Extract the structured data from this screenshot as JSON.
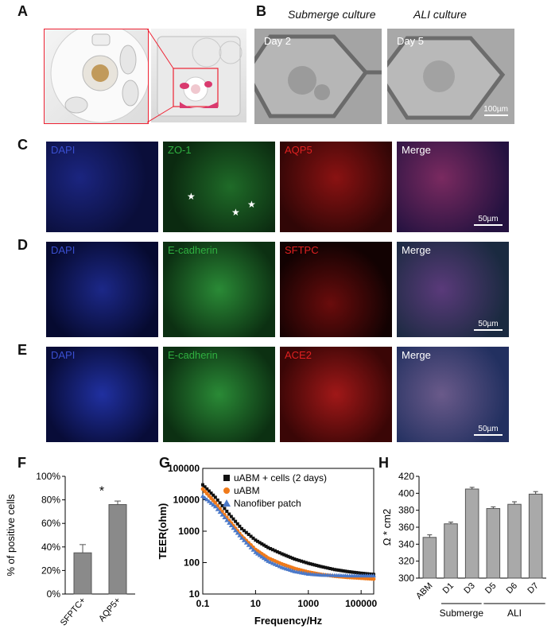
{
  "panels": {
    "a": {
      "letter": "A"
    },
    "b": {
      "letter": "B",
      "submerge_title": "Submerge culture",
      "ali_title": "ALI culture",
      "day_left": "Day 2",
      "day_right": "Day 5",
      "scale": "100µm"
    },
    "c": {
      "letter": "C",
      "tiles": [
        "DAPI",
        "ZO-1",
        "AQP5",
        "Merge"
      ],
      "scale": "50µm"
    },
    "d": {
      "letter": "D",
      "tiles": [
        "DAPI",
        "E-cadherin",
        "SFTPC",
        "Merge"
      ],
      "scale": "50µm"
    },
    "e": {
      "letter": "E",
      "tiles": [
        "DAPI",
        "E-cadherin",
        "ACE2",
        "Merge"
      ],
      "scale": "50µm"
    },
    "f": {
      "letter": "F",
      "significance": "*"
    },
    "g": {
      "letter": "G"
    },
    "h": {
      "letter": "H",
      "group_submerge": "Submerge",
      "group_ali": "ALI"
    }
  },
  "colors": {
    "dapi": "#3a4fd0",
    "green": "#2fb040",
    "red": "#e02020",
    "merge": "#ffffff",
    "bar": "#8a8a8a",
    "black_series": "#111111",
    "orange_series": "#f07a1a",
    "blue_series": "#4a78c8"
  },
  "chart_data": [
    {
      "id": "F",
      "type": "bar",
      "categories": [
        "SFPTC+",
        "AQP5+"
      ],
      "values": [
        35,
        76
      ],
      "errors": [
        7,
        3
      ],
      "ylabel": "% of positive cells",
      "ylim": [
        0,
        100
      ],
      "yticks": [
        "0%",
        "20%",
        "40%",
        "60%",
        "80%",
        "100%"
      ],
      "yticks_values": [
        0,
        20,
        40,
        60,
        80,
        100
      ],
      "annotation": "*"
    },
    {
      "id": "G",
      "type": "scatter",
      "xlabel": "Frequency/Hz",
      "ylabel": "TEER(ohm)",
      "xscale": "log",
      "yscale": "log",
      "xlim": [
        0.1,
        300000
      ],
      "ylim": [
        10,
        100000
      ],
      "xticks": [
        "0.1",
        "10",
        "1000",
        "100000"
      ],
      "xticks_values": [
        0.1,
        10,
        1000,
        100000
      ],
      "yticks": [
        "10",
        "100",
        "1000",
        "10000",
        "100000"
      ],
      "yticks_values": [
        10,
        100,
        1000,
        10000,
        100000
      ],
      "legend_position": "top-right",
      "series": [
        {
          "name": "uABM + cells (2 days)",
          "marker": "square",
          "color": "#111111",
          "x": [
            0.1,
            0.3,
            1,
            3,
            10,
            30,
            100,
            300,
            1000,
            3000,
            10000,
            30000,
            100000,
            300000
          ],
          "y": [
            30000,
            12000,
            3500,
            1200,
            520,
            300,
            190,
            130,
            95,
            75,
            60,
            52,
            46,
            42
          ]
        },
        {
          "name": "uABM",
          "marker": "circle",
          "color": "#f07a1a",
          "x": [
            0.1,
            0.3,
            1,
            3,
            10,
            30,
            100,
            300,
            1000,
            3000,
            10000,
            30000,
            100000,
            300000
          ],
          "y": [
            22000,
            8000,
            2200,
            700,
            260,
            140,
            90,
            65,
            50,
            42,
            37,
            34,
            32,
            30
          ]
        },
        {
          "name": "Nanofiber patch",
          "marker": "triangle",
          "color": "#4a78c8",
          "x": [
            0.1,
            0.3,
            1,
            3,
            10,
            30,
            100,
            300,
            1000,
            3000,
            10000,
            30000,
            100000,
            300000
          ],
          "y": [
            13000,
            6000,
            1800,
            600,
            210,
            110,
            70,
            52,
            43,
            40,
            39,
            38,
            38,
            38
          ]
        }
      ]
    },
    {
      "id": "H",
      "type": "bar",
      "categories": [
        "ABM",
        "D1",
        "D3",
        "D5",
        "D6",
        "D7"
      ],
      "values": [
        348,
        364,
        405,
        382,
        387,
        399
      ],
      "errors": [
        3,
        2,
        2,
        2,
        3,
        3
      ],
      "ylabel": "Ω * cm2",
      "ylim": [
        300,
        420
      ],
      "yticks": [
        "300",
        "320",
        "340",
        "360",
        "380",
        "400",
        "420"
      ],
      "yticks_values": [
        300,
        320,
        340,
        360,
        380,
        400,
        420
      ],
      "groups": [
        {
          "label": "Submerge",
          "categories": [
            "D1",
            "D3"
          ]
        },
        {
          "label": "ALI",
          "categories": [
            "D5",
            "D6",
            "D7"
          ]
        }
      ]
    }
  ]
}
